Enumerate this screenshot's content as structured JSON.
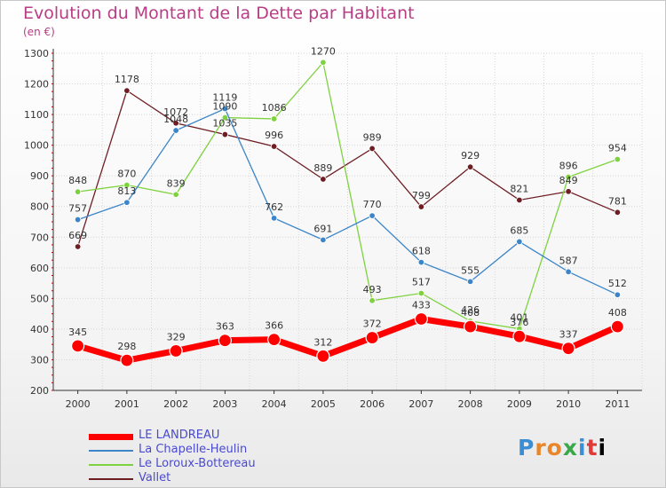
{
  "chart_data": {
    "type": "line",
    "title": "Evolution du Montant de la Dette par Habitant",
    "subtitle": "(en €)",
    "x": [
      "2000",
      "2001",
      "2002",
      "2003",
      "2004",
      "2005",
      "2006",
      "2007",
      "2008",
      "2009",
      "2010",
      "2011"
    ],
    "ylim": [
      200,
      1300
    ],
    "yticks": [
      200,
      300,
      400,
      500,
      600,
      700,
      800,
      900,
      1000,
      1100,
      1200,
      1300
    ],
    "grid": true,
    "legend_position": "bottom-left",
    "series": [
      {
        "name": "LE LANDREAU",
        "color": "#ff0000",
        "values": [
          345,
          298,
          329,
          363,
          366,
          312,
          372,
          433,
          408,
          376,
          337,
          408
        ]
      },
      {
        "name": "La Chapelle-Heulin",
        "color": "#3b85c8",
        "values": [
          757,
          813,
          1048,
          1119,
          762,
          691,
          770,
          618,
          555,
          685,
          587,
          512
        ]
      },
      {
        "name": "Le Loroux-Bottereau",
        "color": "#7fd23f",
        "values": [
          848,
          870,
          839,
          1090,
          1086,
          1270,
          493,
          517,
          426,
          401,
          896,
          954
        ]
      },
      {
        "name": "Vallet",
        "color": "#6e1e23",
        "values": [
          669,
          1178,
          1072,
          1035,
          996,
          889,
          989,
          799,
          929,
          821,
          849,
          781
        ]
      }
    ]
  },
  "logo": {
    "letters": [
      "P",
      "r",
      "o",
      "x",
      "i",
      "t",
      "i"
    ]
  }
}
